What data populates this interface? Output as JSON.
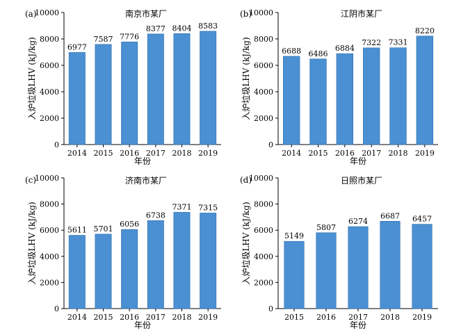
{
  "colors": {
    "bar": "#4a90d2",
    "bar_stroke": "#2f6fae",
    "axis": "#000000"
  },
  "chart_data": [
    {
      "type": "bar",
      "panel_label": "(a)",
      "title": "南京市某厂",
      "xlabel": "年份",
      "ylabel": "入炉垃圾LHV (kJ/kg)",
      "ylim": [
        0,
        10000
      ],
      "yticks": [
        0,
        2000,
        4000,
        6000,
        8000,
        10000
      ],
      "categories": [
        "2014",
        "2015",
        "2016",
        "2017",
        "2018",
        "2019"
      ],
      "values": [
        6977,
        7587,
        7776,
        8377,
        8404,
        8583
      ],
      "data_labels": [
        "6977",
        "7587",
        "7776",
        "8377",
        "8404",
        "8583"
      ]
    },
    {
      "type": "bar",
      "panel_label": "(b)",
      "title": "江阴市某厂",
      "xlabel": "年份",
      "ylabel": "入炉垃圾LHV (kJ/kg)",
      "ylim": [
        0,
        10000
      ],
      "yticks": [
        0,
        2000,
        4000,
        6000,
        8000,
        10000
      ],
      "categories": [
        "2014",
        "2015",
        "2016",
        "2017",
        "2018",
        "2019"
      ],
      "values": [
        6688,
        6486,
        6884,
        7322,
        7331,
        8220
      ],
      "data_labels": [
        "6688",
        "6486",
        "6884",
        "7322",
        "7331",
        "8220"
      ]
    },
    {
      "type": "bar",
      "panel_label": "(c)",
      "title": "济南市某厂",
      "xlabel": "年份",
      "ylabel": "入炉垃圾LHV (kJ/kg)",
      "ylim": [
        0,
        10000
      ],
      "yticks": [
        0,
        2000,
        4000,
        6000,
        8000,
        10000
      ],
      "categories": [
        "2014",
        "2015",
        "2016",
        "2017",
        "2018",
        "2019"
      ],
      "values": [
        5611,
        5701,
        6056,
        6738,
        7371,
        7315
      ],
      "data_labels": [
        "5611",
        "5701",
        "6056",
        "6738",
        "7371",
        "7315"
      ]
    },
    {
      "type": "bar",
      "panel_label": "(d)",
      "title": "日照市某厂",
      "xlabel": "年份",
      "ylabel": "入炉垃圾LHV (kJ/kg)",
      "ylim": [
        0,
        10000
      ],
      "yticks": [
        0,
        2000,
        4000,
        6000,
        8000,
        10000
      ],
      "categories": [
        "2015",
        "2016",
        "2017",
        "2018",
        "2019"
      ],
      "values": [
        5149,
        5807,
        6274,
        6687,
        6457
      ],
      "data_labels": [
        "5149",
        "5807",
        "6274",
        "6687",
        "6457"
      ]
    }
  ]
}
